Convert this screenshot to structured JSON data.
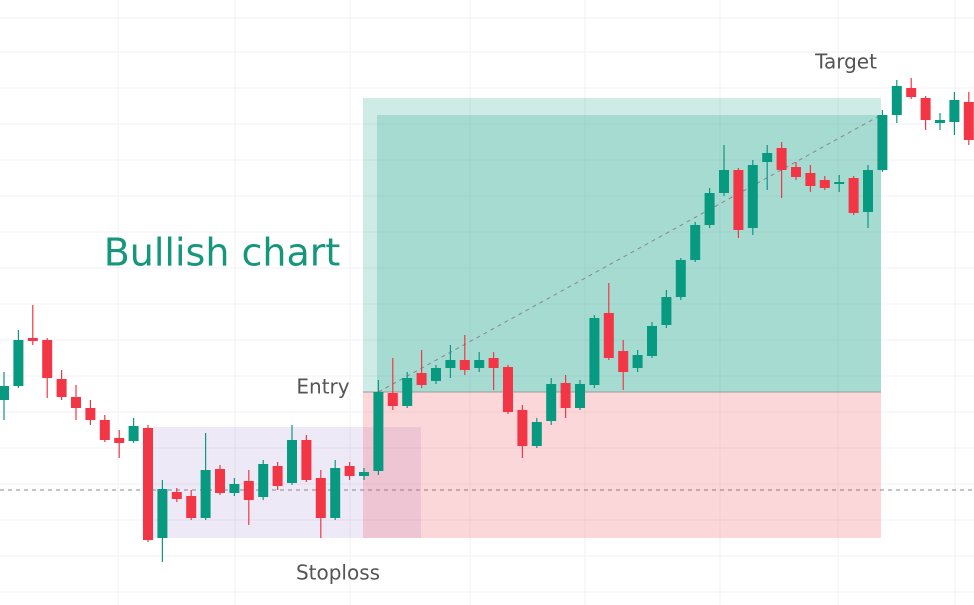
{
  "chart_data": {
    "type": "candlestick",
    "title": "Bullish chart",
    "ylim": [
      0,
      605
    ],
    "up_color": "#089981",
    "down_color": "#f23645",
    "open": [
      205,
      219,
      267,
      265,
      226,
      208,
      197,
      185,
      167,
      164,
      177,
      67,
      113,
      109,
      87,
      136,
      112,
      124,
      108,
      139,
      122,
      165,
      127,
      87,
      139,
      129,
      134,
      212,
      199,
      232,
      224,
      237,
      245,
      237,
      247,
      238,
      195,
      159,
      184,
      222,
      197,
      220,
      292,
      254,
      237,
      249,
      280,
      308,
      345,
      380,
      412,
      435,
      377,
      443,
      457,
      438,
      432,
      425,
      421,
      427,
      393,
      435,
      490,
      517,
      507,
      482,
      483,
      503
    ],
    "high": [
      233,
      275,
      300,
      267,
      235,
      220,
      205,
      190,
      175,
      187,
      180,
      125,
      117,
      115,
      172,
      140,
      127,
      135,
      145,
      143,
      180,
      170,
      135,
      145,
      143,
      137,
      225,
      247,
      233,
      255,
      240,
      260,
      270,
      253,
      253,
      240,
      200,
      187,
      227,
      230,
      225,
      290,
      322,
      265,
      255,
      283,
      315,
      347,
      383,
      417,
      460,
      437,
      445,
      460,
      463,
      443,
      440,
      429,
      430,
      429,
      440,
      495,
      525,
      527,
      509,
      492,
      513,
      513
    ],
    "low": [
      185,
      217,
      260,
      207,
      205,
      185,
      180,
      163,
      147,
      162,
      63,
      43,
      103,
      85,
      85,
      110,
      109,
      80,
      105,
      115,
      120,
      123,
      67,
      85,
      125,
      125,
      130,
      195,
      197,
      217,
      221,
      227,
      230,
      233,
      215,
      191,
      147,
      157,
      180,
      187,
      195,
      217,
      245,
      215,
      233,
      247,
      277,
      305,
      343,
      377,
      409,
      367,
      370,
      415,
      407,
      425,
      413,
      415,
      413,
      390,
      377,
      433,
      482,
      506,
      475,
      475,
      470,
      460
    ],
    "close": [
      219,
      265,
      264,
      227,
      208,
      197,
      185,
      165,
      162,
      179,
      65,
      116,
      106,
      87,
      135,
      112,
      121,
      105,
      141,
      119,
      165,
      125,
      87,
      137,
      129,
      133,
      213,
      199,
      227,
      220,
      237,
      245,
      235,
      245,
      237,
      193,
      159,
      183,
      221,
      197,
      221,
      287,
      247,
      233,
      250,
      279,
      308,
      345,
      380,
      412,
      435,
      375,
      440,
      452,
      435,
      428,
      419,
      417,
      423,
      392,
      435,
      490,
      519,
      508,
      485,
      485,
      505,
      465
    ],
    "annotations": [
      {
        "label": "Entry",
        "value": 213
      },
      {
        "label": "Target",
        "value": 507
      },
      {
        "label": "Stoploss",
        "value": 67
      }
    ]
  }
}
